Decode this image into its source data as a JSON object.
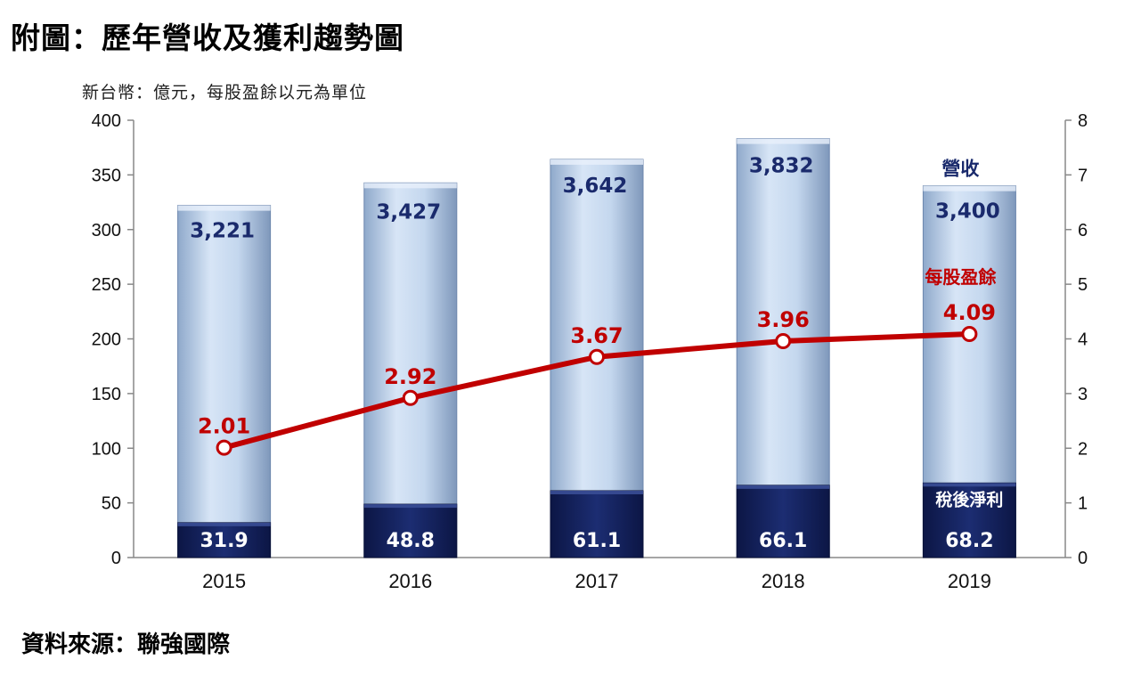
{
  "title": "附圖：歷年營收及獲利趨勢圖",
  "unit_note": "新台幣：億元，每股盈餘以元為單位",
  "source": "資料來源：聯強國際",
  "colors": {
    "revenue_bar": "#c7d9f0",
    "net_income_bar": "#12205a",
    "eps_line": "#c00000"
  },
  "chart_data": {
    "type": "bar",
    "categories": [
      "2015",
      "2016",
      "2017",
      "2018",
      "2019"
    ],
    "y_left": {
      "ticks": [
        "0",
        "50",
        "100",
        "150",
        "200",
        "250",
        "300",
        "350",
        "400"
      ],
      "range": [
        0,
        400
      ]
    },
    "y_right": {
      "ticks": [
        "0",
        "1",
        "2",
        "3",
        "4",
        "5",
        "6",
        "7",
        "8"
      ],
      "range": [
        0,
        8
      ]
    },
    "series": [
      {
        "name": "營收",
        "type": "bar",
        "axis": "left",
        "labels": [
          "3,221",
          "3,427",
          "3,642",
          "3,832",
          "3,400"
        ],
        "values": [
          3221,
          3427,
          3642,
          3832,
          3400
        ],
        "plotted": [
          322.1,
          342.7,
          364.2,
          383.2,
          340.0
        ]
      },
      {
        "name": "稅後淨利",
        "type": "bar",
        "axis": "left",
        "labels": [
          "31.9",
          "48.8",
          "61.1",
          "66.1",
          "68.2"
        ],
        "values": [
          31.9,
          48.8,
          61.1,
          66.1,
          68.2
        ]
      },
      {
        "name": "每股盈餘",
        "type": "line",
        "axis": "right",
        "labels": [
          "2.01",
          "2.92",
          "3.67",
          "3.96",
          "4.09"
        ],
        "values": [
          2.01,
          2.92,
          3.67,
          3.96,
          4.09
        ]
      }
    ],
    "annotations": {
      "revenue": "營收",
      "eps": "每股盈餘",
      "net_income": "稅後淨利"
    },
    "grid": false
  }
}
